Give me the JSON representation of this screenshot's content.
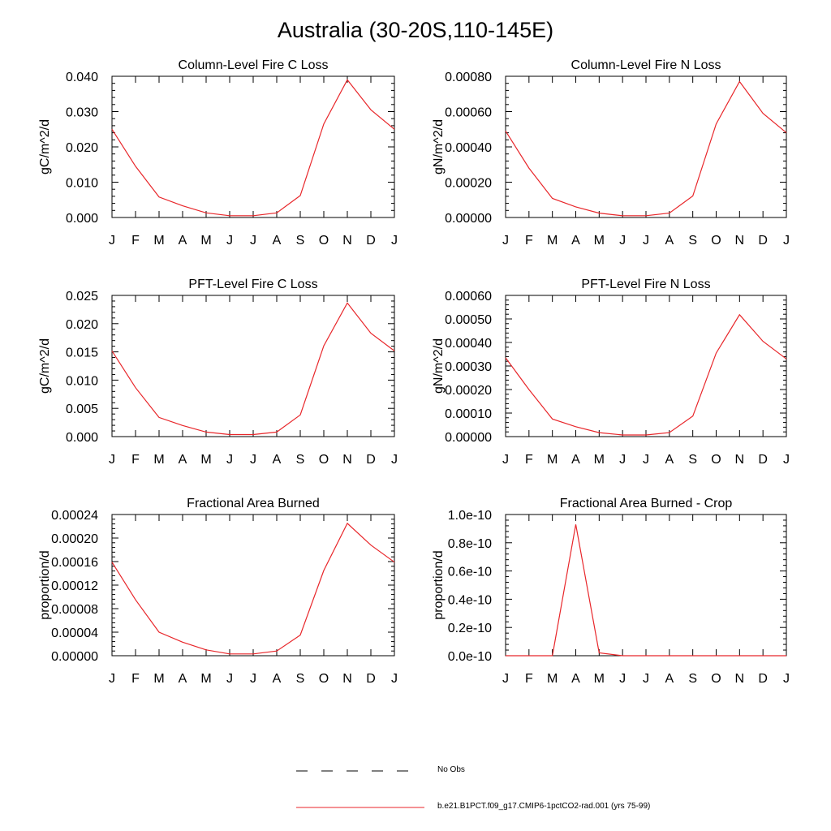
{
  "figure": {
    "title": "Australia (30-20S,110-145E)"
  },
  "colors": {
    "model_line": "#e8262a",
    "axis": "#000000",
    "obs_line": "#000000"
  },
  "legend": {
    "items": [
      {
        "label": "No Obs",
        "style": "dashed",
        "color": "#000000"
      },
      {
        "label": "b.e21.B1PCT.f09_g17.CMIP6-1pctCO2-rad.001 (yrs 75-99)",
        "style": "solid",
        "color": "#e8262a"
      }
    ]
  },
  "chart_data": [
    {
      "type": "line",
      "title": "Column-Level Fire C Loss",
      "ylabel": "gC/m^2/d",
      "categories": [
        "J",
        "F",
        "M",
        "A",
        "M",
        "J",
        "J",
        "A",
        "S",
        "O",
        "N",
        "D",
        "J"
      ],
      "ylim": [
        0,
        0.04
      ],
      "yticks": [
        "0.000",
        "0.010",
        "0.020",
        "0.030",
        "0.040"
      ],
      "series": [
        {
          "values": [
            0.025,
            0.0145,
            0.0058,
            0.0033,
            0.0013,
            0.0005,
            0.0005,
            0.0013,
            0.0062,
            0.0265,
            0.039,
            0.0305,
            0.025
          ]
        }
      ]
    },
    {
      "type": "line",
      "title": "Column-Level Fire N Loss",
      "ylabel": "gN/m^2/d",
      "categories": [
        "J",
        "F",
        "M",
        "A",
        "M",
        "J",
        "J",
        "A",
        "S",
        "O",
        "N",
        "D",
        "J"
      ],
      "ylim": [
        0,
        0.0008
      ],
      "yticks": [
        "0.00000",
        "0.00020",
        "0.00040",
        "0.00060",
        "0.00080"
      ],
      "series": [
        {
          "values": [
            0.00049,
            0.00028,
            0.000108,
            6e-05,
            2.5e-05,
            1e-05,
            1e-05,
            2.5e-05,
            0.000122,
            0.00053,
            0.00077,
            0.00059,
            0.00048
          ]
        }
      ]
    },
    {
      "type": "line",
      "title": "PFT-Level Fire C Loss",
      "ylabel": "gC/m^2/d",
      "categories": [
        "J",
        "F",
        "M",
        "A",
        "M",
        "J",
        "J",
        "A",
        "S",
        "O",
        "N",
        "D",
        "J"
      ],
      "ylim": [
        0,
        0.028
      ],
      "yticks": [
        "0.000",
        "0.005",
        "0.010",
        "0.015",
        "0.020",
        "0.025"
      ],
      "series": [
        {
          "values": [
            0.017,
            0.0097,
            0.0038,
            0.0022,
            0.0009,
            0.0004,
            0.0004,
            0.0009,
            0.0043,
            0.018,
            0.0265,
            0.0205,
            0.017
          ]
        }
      ]
    },
    {
      "type": "line",
      "title": "PFT-Level Fire N Loss",
      "ylabel": "gN/m^2/d",
      "categories": [
        "J",
        "F",
        "M",
        "A",
        "M",
        "J",
        "J",
        "A",
        "S",
        "O",
        "N",
        "D",
        "J"
      ],
      "ylim": [
        0,
        0.0006
      ],
      "yticks": [
        "0.00000",
        "0.00010",
        "0.00020",
        "0.00030",
        "0.00040",
        "0.00050",
        "0.00060"
      ],
      "series": [
        {
          "values": [
            0.000335,
            0.0002,
            7.5e-05,
            4.2e-05,
            1.7e-05,
            7e-06,
            7e-06,
            1.7e-05,
            8.7e-05,
            0.000355,
            0.000518,
            0.000405,
            0.00033
          ]
        }
      ]
    },
    {
      "type": "line",
      "title": "Fractional Area Burned",
      "ylabel": "proportion/d",
      "categories": [
        "J",
        "F",
        "M",
        "A",
        "M",
        "J",
        "J",
        "A",
        "S",
        "O",
        "N",
        "D",
        "J"
      ],
      "ylim": [
        0,
        0.00024
      ],
      "yticks": [
        "0.00000",
        "0.00004",
        "0.00008",
        "0.00012",
        "0.00016",
        "0.00020",
        "0.00024"
      ],
      "series": [
        {
          "values": [
            0.000159,
            9.5e-05,
            4e-05,
            2.3e-05,
            1e-05,
            3e-06,
            3e-06,
            8e-06,
            3.5e-05,
            0.000145,
            0.000225,
            0.000188,
            0.000159
          ]
        }
      ]
    },
    {
      "type": "line",
      "title": "Fractional Area Burned - Crop",
      "ylabel": "proportion/d",
      "categories": [
        "J",
        "F",
        "M",
        "A",
        "M",
        "J",
        "J",
        "A",
        "S",
        "O",
        "N",
        "D",
        "J"
      ],
      "ylim": [
        0,
        1e-10
      ],
      "yticks": [
        "0.0e-10",
        "0.2e-10",
        "0.4e-10",
        "0.6e-10",
        "0.8e-10",
        "1.0e-10"
      ],
      "series": [
        {
          "values": [
            0,
            0,
            0,
            9.3e-11,
            2e-12,
            0,
            0,
            0,
            0,
            0,
            0,
            0,
            0
          ]
        }
      ]
    }
  ]
}
